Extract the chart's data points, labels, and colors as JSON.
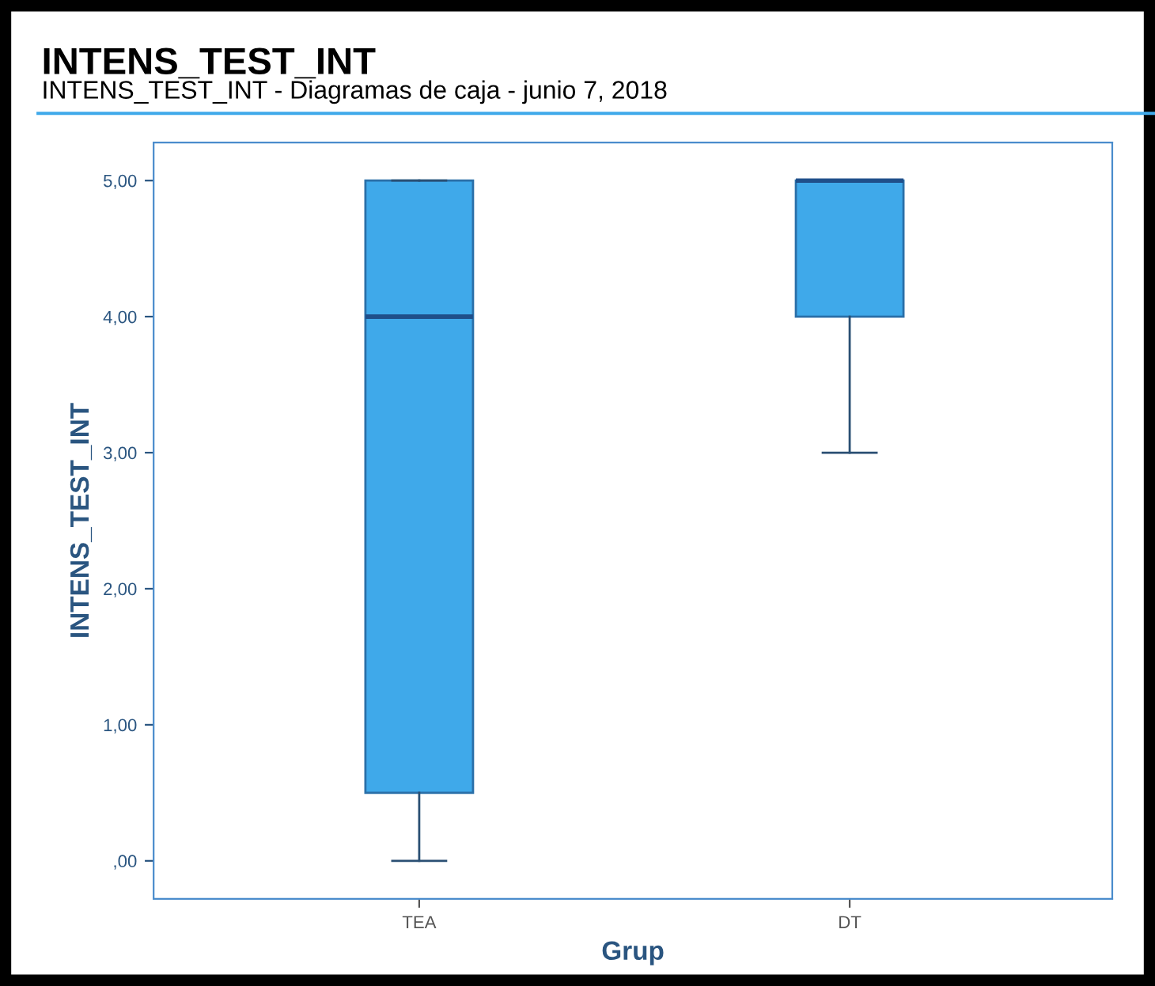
{
  "chart_data": {
    "type": "box",
    "title": "INTENS_TEST_INT",
    "subtitle": "INTENS_TEST_INT - Diagramas de caja - junio 7, 2018",
    "xlabel": "Grup",
    "ylabel": "INTENS_TEST_INT",
    "categories": [
      "TEA",
      "DT"
    ],
    "boxes": [
      {
        "low": 0,
        "q1": 0.5,
        "median": 4,
        "q3": 5,
        "high": 5
      },
      {
        "low": 3,
        "q1": 4,
        "median": 5,
        "q3": 5,
        "high": 5
      }
    ],
    "color": "#3fa9ea",
    "ylim": [
      -0.28,
      5.28
    ],
    "yticks": [
      {
        "value": 0,
        "label": ",00"
      },
      {
        "value": 1,
        "label": "1,00"
      },
      {
        "value": 2,
        "label": "2,00"
      },
      {
        "value": 3,
        "label": "3,00"
      },
      {
        "value": 4,
        "label": "4,00"
      },
      {
        "value": 5,
        "label": "5,00"
      }
    ],
    "grid": false,
    "legend": false
  }
}
